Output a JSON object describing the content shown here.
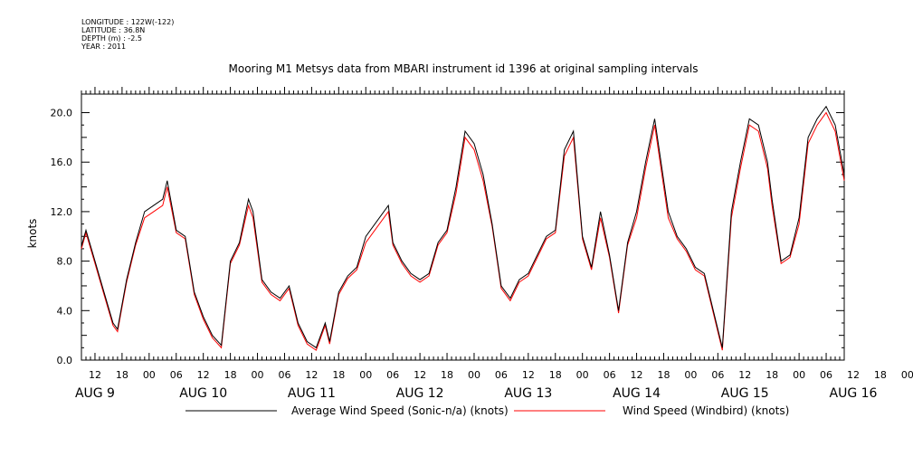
{
  "metadata": {
    "longitude": "LONGITUDE : 122W(-122)",
    "latitude": "LATITUDE : 36.8N",
    "depth": "DEPTH (m) : -2.5",
    "year": "YEAR : 2011"
  },
  "colors": {
    "series1": "#000000",
    "series2": "#ff0000"
  },
  "chart_data": {
    "type": "line",
    "title": "Mooring M1 Metsys data from MBARI instrument id 1396 at original sampling intervals",
    "ylabel": "knots",
    "xlabel": "",
    "ylim": [
      0,
      21.5
    ],
    "xlim": [
      "2011-08-09 09:00",
      "2011-08-16 10:00"
    ],
    "y_ticks": [
      "0.0",
      "4.0",
      "8.0",
      "12.0",
      "16.0",
      "20.0"
    ],
    "x_hour_labels": [
      "12",
      "18",
      "00",
      "06",
      "12",
      "18",
      "00",
      "06",
      "12",
      "18",
      "00",
      "06",
      "12",
      "18",
      "00",
      "06",
      "12",
      "18",
      "00",
      "06",
      "12",
      "18",
      "00",
      "06",
      "12",
      "18",
      "00",
      "06",
      "12",
      "18",
      "00",
      "06"
    ],
    "x_day_labels": [
      "AUG  9",
      "AUG 10",
      "AUG 11",
      "AUG 12",
      "AUG 13",
      "AUG 14",
      "AUG 15",
      "AUG 16"
    ],
    "legend_position": "bottom",
    "gap": [
      "2011-08-12 00:00",
      "2011-08-12 05:00"
    ],
    "series": [
      {
        "name": "Average Wind Speed (Sonic-n/a) (knots)",
        "color": "#000000",
        "x": [
          "2011-08-09 09:00",
          "2011-08-09 10:00",
          "2011-08-09 12:00",
          "2011-08-09 14:00",
          "2011-08-09 16:00",
          "2011-08-09 17:00",
          "2011-08-09 19:00",
          "2011-08-09 21:00",
          "2011-08-09 23:00",
          "2011-08-10 01:00",
          "2011-08-10 03:00",
          "2011-08-10 04:00",
          "2011-08-10 06:00",
          "2011-08-10 08:00",
          "2011-08-10 10:00",
          "2011-08-10 12:00",
          "2011-08-10 14:00",
          "2011-08-10 16:00",
          "2011-08-10 18:00",
          "2011-08-10 20:00",
          "2011-08-10 22:00",
          "2011-08-10 23:00",
          "2011-08-11 01:00",
          "2011-08-11 03:00",
          "2011-08-11 05:00",
          "2011-08-11 07:00",
          "2011-08-11 09:00",
          "2011-08-11 11:00",
          "2011-08-11 13:00",
          "2011-08-11 15:00",
          "2011-08-11 16:00",
          "2011-08-11 18:00",
          "2011-08-11 20:00",
          "2011-08-11 22:00",
          "2011-08-12 00:00",
          "2011-08-12 05:00",
          "2011-08-12 06:00",
          "2011-08-12 08:00",
          "2011-08-12 10:00",
          "2011-08-12 12:00",
          "2011-08-12 14:00",
          "2011-08-12 16:00",
          "2011-08-12 18:00",
          "2011-08-12 20:00",
          "2011-08-12 22:00",
          "2011-08-13 00:00",
          "2011-08-13 02:00",
          "2011-08-13 04:00",
          "2011-08-13 06:00",
          "2011-08-13 08:00",
          "2011-08-13 10:00",
          "2011-08-13 12:00",
          "2011-08-13 14:00",
          "2011-08-13 16:00",
          "2011-08-13 18:00",
          "2011-08-13 20:00",
          "2011-08-13 22:00",
          "2011-08-14 00:00",
          "2011-08-14 02:00",
          "2011-08-14 04:00",
          "2011-08-14 06:00",
          "2011-08-14 08:00",
          "2011-08-14 10:00",
          "2011-08-14 12:00",
          "2011-08-14 14:00",
          "2011-08-14 16:00",
          "2011-08-14 17:00",
          "2011-08-14 19:00",
          "2011-08-14 21:00",
          "2011-08-14 23:00",
          "2011-08-15 01:00",
          "2011-08-15 03:00",
          "2011-08-15 05:00",
          "2011-08-15 07:00",
          "2011-08-15 09:00",
          "2011-08-15 11:00",
          "2011-08-15 13:00",
          "2011-08-15 15:00",
          "2011-08-15 17:00",
          "2011-08-15 18:00",
          "2011-08-15 20:00",
          "2011-08-15 22:00",
          "2011-08-16 00:00",
          "2011-08-16 02:00",
          "2011-08-16 04:00",
          "2011-08-16 06:00",
          "2011-08-16 08:00",
          "2011-08-16 10:00"
        ],
        "y": [
          9.2,
          10.5,
          8.0,
          5.5,
          3.0,
          2.5,
          6.5,
          9.5,
          12.0,
          12.5,
          13.0,
          14.5,
          10.5,
          10.0,
          5.5,
          3.5,
          2.0,
          1.2,
          8.0,
          9.5,
          13.0,
          12.0,
          6.5,
          5.5,
          5.0,
          6.0,
          3.0,
          1.5,
          1.0,
          3.0,
          1.5,
          5.5,
          6.8,
          7.5,
          10.0,
          12.5,
          9.5,
          8.0,
          7.0,
          6.5,
          7.0,
          9.5,
          10.5,
          14.0,
          18.5,
          17.5,
          15.0,
          11.0,
          6.0,
          5.0,
          6.5,
          7.0,
          8.5,
          10.0,
          10.5,
          17.0,
          18.5,
          10.0,
          7.5,
          12.0,
          8.5,
          4.0,
          9.5,
          12.0,
          16.0,
          19.5,
          17.0,
          12.0,
          10.0,
          9.0,
          7.5,
          7.0,
          4.0,
          1.0,
          12.0,
          16.0,
          19.5,
          19.0,
          16.0,
          13.0,
          8.0,
          8.5,
          11.5,
          18.0,
          19.5,
          20.5,
          19.0,
          15.0
        ]
      },
      {
        "name": "Wind Speed (Windbird) (knots)",
        "color": "#ff0000",
        "x": [
          "2011-08-09 09:00",
          "2011-08-09 10:00",
          "2011-08-09 12:00",
          "2011-08-09 14:00",
          "2011-08-09 16:00",
          "2011-08-09 17:00",
          "2011-08-09 19:00",
          "2011-08-09 21:00",
          "2011-08-09 23:00",
          "2011-08-10 01:00",
          "2011-08-10 03:00",
          "2011-08-10 04:00",
          "2011-08-10 06:00",
          "2011-08-10 08:00",
          "2011-08-10 10:00",
          "2011-08-10 12:00",
          "2011-08-10 14:00",
          "2011-08-10 16:00",
          "2011-08-10 18:00",
          "2011-08-10 20:00",
          "2011-08-10 22:00",
          "2011-08-10 23:00",
          "2011-08-11 01:00",
          "2011-08-11 03:00",
          "2011-08-11 05:00",
          "2011-08-11 07:00",
          "2011-08-11 09:00",
          "2011-08-11 11:00",
          "2011-08-11 13:00",
          "2011-08-11 15:00",
          "2011-08-11 16:00",
          "2011-08-11 18:00",
          "2011-08-11 20:00",
          "2011-08-11 22:00",
          "2011-08-12 00:00",
          "2011-08-12 05:00",
          "2011-08-12 06:00",
          "2011-08-12 08:00",
          "2011-08-12 10:00",
          "2011-08-12 12:00",
          "2011-08-12 14:00",
          "2011-08-12 16:00",
          "2011-08-12 18:00",
          "2011-08-12 20:00",
          "2011-08-12 22:00",
          "2011-08-13 00:00",
          "2011-08-13 02:00",
          "2011-08-13 04:00",
          "2011-08-13 06:00",
          "2011-08-13 08:00",
          "2011-08-13 10:00",
          "2011-08-13 12:00",
          "2011-08-13 14:00",
          "2011-08-13 16:00",
          "2011-08-13 18:00",
          "2011-08-13 20:00",
          "2011-08-13 22:00",
          "2011-08-14 00:00",
          "2011-08-14 02:00",
          "2011-08-14 04:00",
          "2011-08-14 06:00",
          "2011-08-14 08:00",
          "2011-08-14 10:00",
          "2011-08-14 12:00",
          "2011-08-14 14:00",
          "2011-08-14 16:00",
          "2011-08-14 17:00",
          "2011-08-14 19:00",
          "2011-08-14 21:00",
          "2011-08-14 23:00",
          "2011-08-15 01:00",
          "2011-08-15 03:00",
          "2011-08-15 05:00",
          "2011-08-15 07:00",
          "2011-08-15 09:00",
          "2011-08-15 11:00",
          "2011-08-15 13:00",
          "2011-08-15 15:00",
          "2011-08-15 17:00",
          "2011-08-15 18:00",
          "2011-08-15 20:00",
          "2011-08-15 22:00",
          "2011-08-16 00:00",
          "2011-08-16 02:00",
          "2011-08-16 04:00",
          "2011-08-16 06:00",
          "2011-08-16 08:00",
          "2011-08-16 10:00"
        ],
        "y": [
          9.0,
          10.3,
          7.8,
          5.3,
          2.8,
          2.3,
          6.3,
          9.3,
          11.5,
          12.0,
          12.5,
          14.0,
          10.3,
          9.8,
          5.3,
          3.3,
          1.8,
          1.0,
          7.8,
          9.3,
          12.5,
          11.5,
          6.3,
          5.3,
          4.8,
          5.8,
          2.8,
          1.3,
          0.8,
          2.8,
          1.3,
          5.3,
          6.6,
          7.3,
          9.5,
          12.0,
          9.3,
          7.8,
          6.8,
          6.3,
          6.8,
          9.3,
          10.3,
          13.5,
          18.0,
          17.0,
          14.5,
          10.8,
          5.8,
          4.8,
          6.3,
          6.8,
          8.3,
          9.8,
          10.3,
          16.5,
          18.0,
          9.8,
          7.3,
          11.5,
          8.3,
          3.8,
          9.3,
          11.5,
          15.5,
          19.0,
          16.5,
          11.5,
          9.8,
          8.8,
          7.3,
          6.8,
          3.8,
          0.8,
          11.5,
          15.5,
          19.0,
          18.5,
          15.5,
          12.5,
          7.8,
          8.3,
          11.0,
          17.5,
          19.0,
          20.0,
          18.5,
          14.5
        ]
      }
    ]
  }
}
